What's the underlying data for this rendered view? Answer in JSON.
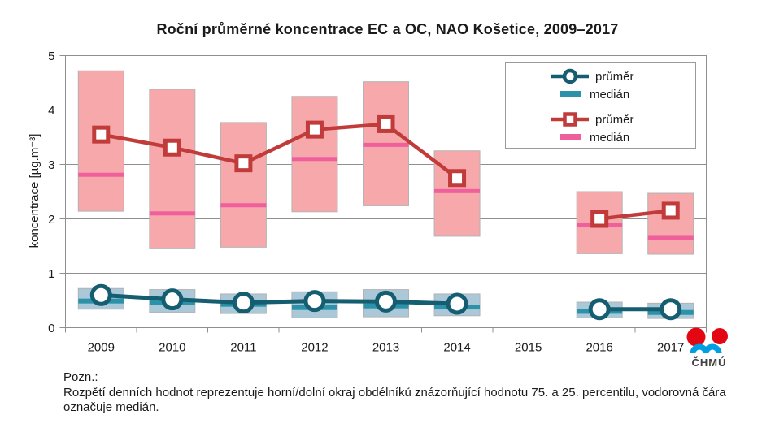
{
  "chart_data": {
    "type": "box",
    "title": "Roční průměrné koncentrace EC a OC, NAO Košetice, 2009–2017",
    "categories": [
      "2009",
      "2010",
      "2011",
      "2012",
      "2013",
      "2014",
      "2015",
      "2016",
      "2017"
    ],
    "ylabel": "koncentrace [µg.m⁻³]",
    "ylim": [
      0,
      5
    ],
    "yticks": [
      0,
      1,
      2,
      3,
      4,
      5
    ],
    "grid": true,
    "legend_position": "top-right",
    "box_meaning": "box edges = 75th / 25th percentile of daily values, band = median, marker = annual mean",
    "series": [
      {
        "name": "EC",
        "mean": [
          0.6,
          0.52,
          0.46,
          0.49,
          0.48,
          0.44,
          null,
          0.34,
          0.34
        ],
        "median": [
          0.49,
          0.46,
          0.43,
          0.37,
          0.4,
          0.38,
          null,
          0.3,
          0.28
        ],
        "p75": [
          0.72,
          0.7,
          0.62,
          0.66,
          0.7,
          0.62,
          null,
          0.47,
          0.45
        ],
        "p25": [
          0.34,
          0.28,
          0.26,
          0.18,
          0.2,
          0.22,
          null,
          0.18,
          0.17
        ]
      },
      {
        "name": "OC",
        "mean": [
          3.55,
          3.31,
          3.02,
          3.64,
          3.74,
          2.75,
          null,
          2.0,
          2.15
        ],
        "median": [
          2.81,
          2.1,
          2.25,
          3.1,
          3.36,
          2.51,
          null,
          1.89,
          1.65
        ],
        "p75": [
          4.72,
          4.38,
          3.77,
          4.25,
          4.52,
          3.25,
          null,
          2.5,
          2.47
        ],
        "p25": [
          2.14,
          1.45,
          1.48,
          2.13,
          2.24,
          1.68,
          null,
          1.36,
          1.35
        ]
      }
    ]
  },
  "legend": {
    "items": [
      {
        "series": "EC",
        "marker": "circle-line",
        "label": "průměr"
      },
      {
        "series": "EC",
        "marker": "bar",
        "label": "medián"
      },
      {
        "series": "OC",
        "marker": "square-line",
        "label": "průměr"
      },
      {
        "series": "OC",
        "marker": "bar",
        "label": "medián"
      }
    ]
  },
  "note": {
    "heading": "Pozn.:",
    "body": "Rozpětí denních hodnot reprezentuje horní/dolní okraj obdélníků znázorňující hodnotu 75. a 25. percentilu, vodorovná čára označuje medián."
  },
  "logo": {
    "text": "ČHMÚ"
  },
  "colors": {
    "oc_box": "#f6a8ab",
    "oc_median": "#ee5f9c",
    "oc_line": "#c03b3a",
    "ec_box": "#aac8d8",
    "ec_median": "#2b92aa",
    "ec_line": "#155d70",
    "grid": "#8f8f8f",
    "box_stroke": "#b3b3b3",
    "text": "#1a1a1a",
    "logo_red": "#e30613",
    "logo_blue": "#009fe3",
    "logo_text": "#404040"
  }
}
